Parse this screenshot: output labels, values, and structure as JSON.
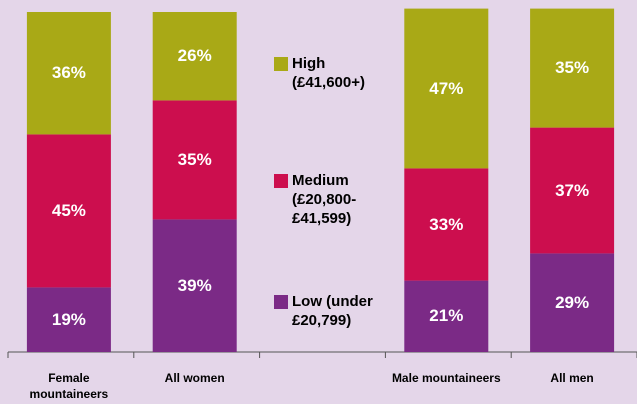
{
  "chart_data": {
    "type": "stacked_bar",
    "categories": [
      "Female mountaineers",
      "All women",
      null,
      "Male mountaineers",
      "All men"
    ],
    "series": [
      {
        "name": "Low (under £20,799)",
        "color": "#7b2a86",
        "values": [
          19,
          39,
          null,
          21,
          29
        ],
        "value_labels": [
          "19%",
          "39%",
          null,
          "21%",
          "29%"
        ]
      },
      {
        "name": "Medium (£20,800-£41,599)",
        "color": "#cc0e4e",
        "values": [
          45,
          35,
          null,
          33,
          37
        ],
        "value_labels": [
          "45%",
          "35%",
          null,
          "33%",
          "37%"
        ]
      },
      {
        "name": "High (£41,600+)",
        "color": "#a9a916",
        "values": [
          36,
          26,
          null,
          47,
          35
        ],
        "value_labels": [
          "36%",
          "26%",
          null,
          "47%",
          "35%"
        ]
      }
    ],
    "ylim": [
      0,
      100
    ]
  }
}
